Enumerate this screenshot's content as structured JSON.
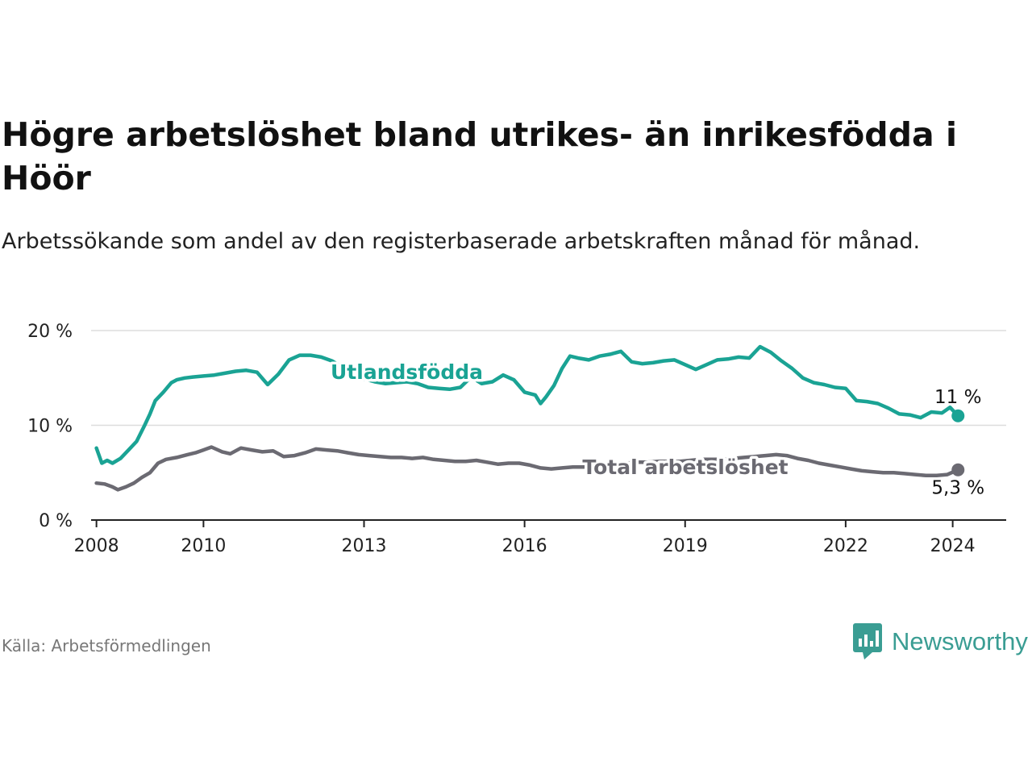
{
  "title": "Högre arbetslöshet bland utrikes- än inrikesfödda i Höör",
  "subtitle": "Arbetssökande som andel av den registerbaserade arbetskraften månad för månad.",
  "source": "Källa: Arbetsförmedlingen",
  "brand": "Newsworthy",
  "colors": {
    "foreign": "#1aa394",
    "total": "#6b6a72",
    "grid": "#dddddd",
    "axis": "#222222"
  },
  "chart_data": {
    "type": "line",
    "title": "Högre arbetslöshet bland utrikes- än inrikesfödda i Höör",
    "xlabel": "",
    "ylabel": "",
    "xlim": [
      2007.9,
      2025.0
    ],
    "ylim": [
      0,
      20
    ],
    "y_ticks": [
      0,
      10,
      20
    ],
    "y_tick_labels": [
      "0 %",
      "10 %",
      "20 %"
    ],
    "x_ticks": [
      2008,
      2010,
      2013,
      2016,
      2019,
      2022,
      2024
    ],
    "x_tick_labels": [
      "2008",
      "2010",
      "2013",
      "2016",
      "2019",
      "2022",
      "2024"
    ],
    "grid": true,
    "series": [
      {
        "name": "Utlandsfödda",
        "label": "Utlandsfödda",
        "end_label": "11 %",
        "color": "#1aa394",
        "x": [
          2008.0,
          2008.1,
          2008.2,
          2008.3,
          2008.45,
          2008.6,
          2008.75,
          2008.9,
          2009.0,
          2009.1,
          2009.25,
          2009.4,
          2009.5,
          2009.65,
          2009.8,
          2010.0,
          2010.2,
          2010.4,
          2010.6,
          2010.8,
          2011.0,
          2011.2,
          2011.4,
          2011.6,
          2011.8,
          2012.0,
          2012.2,
          2012.4,
          2012.6,
          2012.8,
          2013.0,
          2013.2,
          2013.4,
          2013.6,
          2013.8,
          2014.0,
          2014.2,
          2014.4,
          2014.6,
          2014.8,
          2015.0,
          2015.2,
          2015.4,
          2015.6,
          2015.8,
          2016.0,
          2016.2,
          2016.3,
          2016.4,
          2016.55,
          2016.7,
          2016.85,
          2017.0,
          2017.2,
          2017.4,
          2017.6,
          2017.8,
          2018.0,
          2018.2,
          2018.4,
          2018.6,
          2018.8,
          2019.0,
          2019.2,
          2019.4,
          2019.6,
          2019.8,
          2020.0,
          2020.2,
          2020.4,
          2020.6,
          2020.8,
          2021.0,
          2021.2,
          2021.4,
          2021.6,
          2021.8,
          2022.0,
          2022.2,
          2022.4,
          2022.6,
          2022.8,
          2023.0,
          2023.2,
          2023.4,
          2023.6,
          2023.8,
          2023.95,
          2024.1
        ],
        "values": [
          7.6,
          6.0,
          6.3,
          6.0,
          6.5,
          7.4,
          8.3,
          10.0,
          11.2,
          12.6,
          13.5,
          14.5,
          14.8,
          15.0,
          15.1,
          15.2,
          15.3,
          15.5,
          15.7,
          15.8,
          15.6,
          14.3,
          15.4,
          16.9,
          17.4,
          17.4,
          17.2,
          16.8,
          16.1,
          15.3,
          14.9,
          14.6,
          14.4,
          14.5,
          14.6,
          14.4,
          14.0,
          13.9,
          13.8,
          14.0,
          15.1,
          14.4,
          14.6,
          15.3,
          14.8,
          13.5,
          13.2,
          12.3,
          13.0,
          14.2,
          16.0,
          17.3,
          17.1,
          16.9,
          17.3,
          17.5,
          17.8,
          16.7,
          16.5,
          16.6,
          16.8,
          16.9,
          16.4,
          15.9,
          16.4,
          16.9,
          17.0,
          17.2,
          17.1,
          18.3,
          17.7,
          16.8,
          16.0,
          15.0,
          14.5,
          14.3,
          14.0,
          13.9,
          12.6,
          12.5,
          12.3,
          11.8,
          11.2,
          11.1,
          10.8,
          11.4,
          11.3,
          11.9,
          11.0
        ]
      },
      {
        "name": "Total arbetslöshet",
        "label": "Total arbetslöshet",
        "end_label": "5,3 %",
        "color": "#6b6a72",
        "x": [
          2008.0,
          2008.15,
          2008.3,
          2008.4,
          2008.55,
          2008.7,
          2008.85,
          2009.0,
          2009.15,
          2009.3,
          2009.5,
          2009.7,
          2009.85,
          2010.0,
          2010.15,
          2010.35,
          2010.5,
          2010.7,
          2010.9,
          2011.1,
          2011.3,
          2011.5,
          2011.7,
          2011.9,
          2012.1,
          2012.3,
          2012.5,
          2012.7,
          2012.9,
          2013.1,
          2013.3,
          2013.5,
          2013.7,
          2013.9,
          2014.1,
          2014.3,
          2014.5,
          2014.7,
          2014.9,
          2015.1,
          2015.3,
          2015.5,
          2015.7,
          2015.9,
          2016.1,
          2016.3,
          2016.5,
          2016.7,
          2016.9,
          2017.1,
          2017.3,
          2017.5,
          2017.7,
          2017.9,
          2018.1,
          2018.3,
          2018.5,
          2018.7,
          2018.9,
          2019.1,
          2019.3,
          2019.5,
          2019.7,
          2019.9,
          2020.1,
          2020.3,
          2020.5,
          2020.7,
          2020.9,
          2021.1,
          2021.3,
          2021.5,
          2021.7,
          2021.9,
          2022.1,
          2022.3,
          2022.5,
          2022.7,
          2022.9,
          2023.1,
          2023.3,
          2023.5,
          2023.7,
          2023.9,
          2024.1
        ],
        "values": [
          3.9,
          3.8,
          3.5,
          3.2,
          3.5,
          3.9,
          4.5,
          5.0,
          6.0,
          6.4,
          6.6,
          6.9,
          7.1,
          7.4,
          7.7,
          7.2,
          7.0,
          7.6,
          7.4,
          7.2,
          7.3,
          6.7,
          6.8,
          7.1,
          7.5,
          7.4,
          7.3,
          7.1,
          6.9,
          6.8,
          6.7,
          6.6,
          6.6,
          6.5,
          6.6,
          6.4,
          6.3,
          6.2,
          6.2,
          6.3,
          6.1,
          5.9,
          6.0,
          6.0,
          5.8,
          5.5,
          5.4,
          5.5,
          5.6,
          5.6,
          5.7,
          5.8,
          5.9,
          6.0,
          6.1,
          6.1,
          6.2,
          6.2,
          6.2,
          6.3,
          6.4,
          6.4,
          6.4,
          6.5,
          6.6,
          6.7,
          6.8,
          6.9,
          6.8,
          6.5,
          6.3,
          6.0,
          5.8,
          5.6,
          5.4,
          5.2,
          5.1,
          5.0,
          5.0,
          4.9,
          4.8,
          4.7,
          4.7,
          4.8,
          5.3
        ]
      }
    ]
  }
}
